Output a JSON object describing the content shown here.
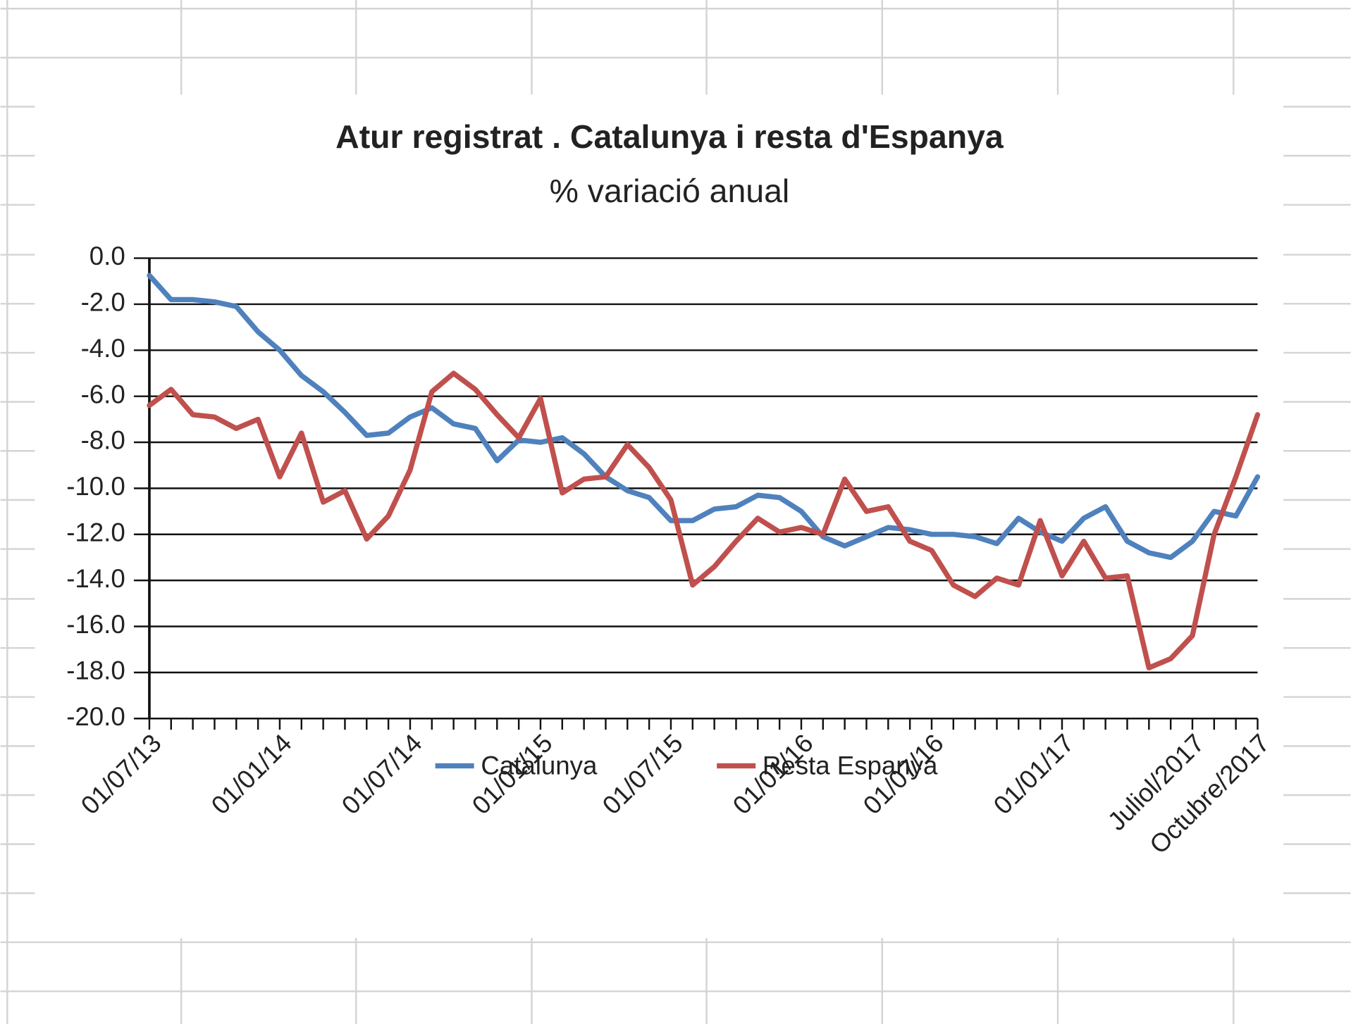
{
  "chart_data": {
    "type": "line",
    "title": "Atur registrat . Catalunya i resta d'Espanya",
    "subtitle": "% variació anual",
    "categories": [
      "01/07/13",
      null,
      null,
      null,
      null,
      null,
      "01/01/14",
      null,
      null,
      null,
      null,
      null,
      "01/07/14",
      null,
      null,
      null,
      null,
      null,
      "01/01/15",
      null,
      null,
      null,
      null,
      null,
      "01/07/15",
      null,
      null,
      null,
      null,
      null,
      "01/01/16",
      null,
      null,
      null,
      null,
      null,
      "01/07/16",
      null,
      null,
      null,
      null,
      null,
      "01/01/17",
      null,
      null,
      null,
      null,
      null,
      "Juliol/2017",
      null,
      null,
      "Octubre/2017"
    ],
    "series": [
      {
        "name": "Catalunya",
        "color": "#4f81bd",
        "values": [
          -0.75,
          -1.8,
          -1.8,
          -1.9,
          -2.1,
          -3.2,
          -4.0,
          -5.1,
          -5.8,
          -6.7,
          -7.7,
          -7.6,
          -6.9,
          -6.5,
          -7.2,
          -7.4,
          -8.8,
          -7.9,
          -8.0,
          -7.8,
          -8.5,
          -9.5,
          -10.1,
          -10.4,
          -11.4,
          -11.4,
          -10.9,
          -10.8,
          -10.3,
          -10.4,
          -11.0,
          -12.1,
          -12.5,
          -12.1,
          -11.7,
          -11.8,
          -12.0,
          -12.0,
          -12.1,
          -12.4,
          -11.3,
          -11.9,
          -12.3,
          -11.3,
          -10.8,
          -12.3,
          -12.8,
          -13.0,
          -12.3,
          -11.0,
          -11.2,
          -9.5
        ]
      },
      {
        "name": "Resta Espanya",
        "color": "#c0504d",
        "values": [
          -6.4,
          -5.7,
          -6.8,
          -6.9,
          -7.4,
          -7.0,
          -9.5,
          -7.6,
          -10.6,
          -10.1,
          -12.2,
          -11.2,
          -9.2,
          -5.8,
          -5.0,
          -5.7,
          -6.8,
          -7.8,
          -6.1,
          -10.2,
          -9.6,
          -9.5,
          -8.1,
          -9.1,
          -10.5,
          -14.2,
          -13.4,
          -12.3,
          -11.3,
          -11.9,
          -11.7,
          -12.0,
          -9.6,
          -11.0,
          -10.8,
          -12.3,
          -12.7,
          -14.2,
          -14.7,
          -13.9,
          -14.2,
          -11.4,
          -13.8,
          -12.3,
          -13.9,
          -13.8,
          -17.8,
          -17.4,
          -16.4,
          -12.0,
          -9.5,
          -6.8
        ]
      }
    ],
    "ylim": [
      -20,
      0
    ],
    "yticks": [
      {
        "value": 0,
        "label": "0.0"
      },
      {
        "value": -2,
        "label": "-2.0"
      },
      {
        "value": -4,
        "label": "-4.0"
      },
      {
        "value": -6,
        "label": "-6.0"
      },
      {
        "value": -8,
        "label": "-8.0"
      },
      {
        "value": -10,
        "label": "-10.0"
      },
      {
        "value": -12,
        "label": "-12.0"
      },
      {
        "value": -14,
        "label": "-14.0"
      },
      {
        "value": -16,
        "label": "-16.0"
      },
      {
        "value": -18,
        "label": "-18.0"
      },
      {
        "value": -20,
        "label": "-20.0"
      }
    ],
    "grid": true,
    "legend": "bottom"
  }
}
